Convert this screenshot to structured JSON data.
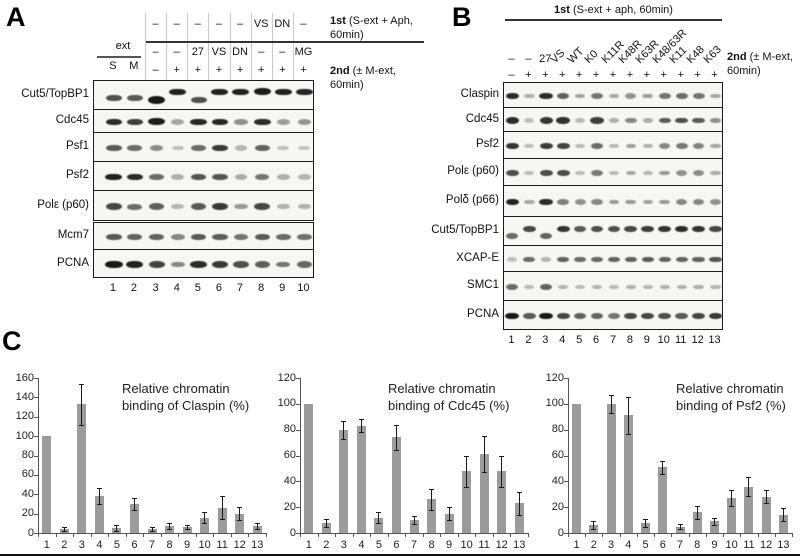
{
  "panel_a": {
    "letter": "A",
    "note_1st": {
      "bold": "1st",
      "rest": "(S-ext + Aph, 60min)"
    },
    "note_2nd": {
      "bold": "2nd",
      "rest": "(± M-ext, 60min)"
    },
    "ext_label": "ext",
    "ext_lanes": [
      "S",
      "M"
    ],
    "cond_row_1st": [
      "–",
      "–",
      "–",
      "–",
      "–",
      "VS",
      "DN",
      "–"
    ],
    "cond_row_2nd": [
      "–",
      "–",
      "27",
      "VS",
      "DN",
      "–",
      "–",
      "MG"
    ],
    "cond_row_mext": [
      "–",
      "+",
      "+",
      "+",
      "+",
      "+",
      "+",
      "+"
    ],
    "lane_numbers": [
      "1",
      "2",
      "3",
      "4",
      "5",
      "6",
      "7",
      "8",
      "9",
      "10"
    ],
    "rows": [
      {
        "label": "Cut5/TopBP1",
        "bands": [
          0.65,
          0.6,
          0.95,
          0.9,
          0.65,
          0.9,
          0.9,
          0.92,
          0.9,
          0.88
        ],
        "dy": [
          2,
          2,
          4,
          -4,
          4,
          -4,
          -4,
          -4,
          -4,
          -4
        ]
      },
      {
        "label": "Cdc45",
        "bands": [
          0.85,
          0.75,
          0.92,
          0.18,
          0.88,
          0.88,
          0.3,
          0.85,
          0.22,
          0.28
        ]
      },
      {
        "label": "Psf1",
        "bands": [
          0.6,
          0.5,
          0.32,
          0.05,
          0.5,
          0.78,
          0.1,
          0.55,
          0.04,
          0.03
        ]
      },
      {
        "label": "Psf2",
        "bands": [
          0.9,
          0.85,
          0.5,
          0.12,
          0.62,
          0.62,
          0.15,
          0.45,
          0.12,
          0.1
        ]
      },
      {
        "label": "Polε (p60)",
        "bands": [
          0.7,
          0.5,
          0.58,
          0.1,
          0.6,
          0.78,
          0.25,
          0.7,
          0.12,
          0.12
        ]
      },
      {
        "label": "Mcm7",
        "bands": [
          0.6,
          0.55,
          0.55,
          0.35,
          0.6,
          0.58,
          0.45,
          0.6,
          0.5,
          0.48
        ]
      },
      {
        "label": "PCNA",
        "bands": [
          0.95,
          0.9,
          0.72,
          0.35,
          0.85,
          0.78,
          0.65,
          0.58,
          0.45,
          0.52
        ]
      }
    ]
  },
  "panel_b": {
    "letter": "B",
    "note_1st": {
      "bold": "1st",
      "rest": "(S-ext + aph, 60min)"
    },
    "note_2nd": {
      "bold": "2nd",
      "rest": "(± M-ext, 60min)"
    },
    "lane_labels": [
      "–",
      "–",
      "27",
      "VS",
      "WT",
      "K0",
      "K11R",
      "K48R",
      "K63R",
      "K48/63R",
      "K11",
      "K48",
      "K63"
    ],
    "cond_row_mext": [
      "–",
      "+",
      "+",
      "+",
      "+",
      "+",
      "+",
      "+",
      "+",
      "+",
      "+",
      "+",
      "+"
    ],
    "lane_numbers": [
      "1",
      "2",
      "3",
      "4",
      "5",
      "6",
      "7",
      "8",
      "9",
      "10",
      "11",
      "12",
      "13"
    ],
    "rows": [
      {
        "label": "Claspin",
        "bands": [
          0.85,
          0.12,
          0.85,
          0.55,
          0.2,
          0.45,
          0.18,
          0.28,
          0.22,
          0.45,
          0.5,
          0.45,
          0.18
        ]
      },
      {
        "label": "Cdc45",
        "bands": [
          0.85,
          0.05,
          0.8,
          0.82,
          0.07,
          0.75,
          0.12,
          0.35,
          0.15,
          0.6,
          0.65,
          0.6,
          0.3
        ]
      },
      {
        "label": "Psf2",
        "bands": [
          0.8,
          0.05,
          0.75,
          0.72,
          0.08,
          0.5,
          0.07,
          0.22,
          0.12,
          0.35,
          0.42,
          0.38,
          0.18
        ]
      },
      {
        "label": "Polε (p60)",
        "bands": [
          0.65,
          0.05,
          0.68,
          0.66,
          0.06,
          0.42,
          0.06,
          0.18,
          0.1,
          0.25,
          0.3,
          0.32,
          0.15
        ]
      },
      {
        "label": "Polδ (p66)",
        "bands": [
          0.9,
          0.18,
          0.85,
          0.4,
          0.3,
          0.35,
          0.25,
          0.25,
          0.2,
          0.25,
          0.35,
          0.35,
          0.3
        ]
      },
      {
        "label": "Cut5/TopBP1",
        "bands": [
          0.5,
          0.7,
          0.55,
          0.8,
          0.6,
          0.65,
          0.65,
          0.7,
          0.75,
          0.8,
          0.85,
          0.8,
          0.7
        ],
        "dy": [
          4,
          -3,
          4,
          -3,
          -3,
          -3,
          -3,
          -3,
          -3,
          -3,
          -3,
          -3,
          -3
        ]
      },
      {
        "label": "XCAP-E",
        "bands": [
          0.05,
          0.5,
          0.1,
          0.55,
          0.5,
          0.52,
          0.55,
          0.55,
          0.6,
          0.55,
          0.55,
          0.55,
          0.62
        ]
      },
      {
        "label": "SMC1",
        "bands": [
          0.5,
          0.07,
          0.55,
          0.1,
          0.08,
          0.1,
          0.08,
          0.12,
          0.1,
          0.12,
          0.12,
          0.12,
          0.1
        ]
      },
      {
        "label": "PCNA",
        "bands": [
          0.95,
          0.6,
          0.95,
          0.7,
          0.55,
          0.55,
          0.45,
          0.7,
          0.7,
          0.65,
          0.6,
          0.7,
          0.78
        ]
      }
    ]
  },
  "panel_c": {
    "letter": "C"
  },
  "chart_data": [
    {
      "type": "bar",
      "title": "Relative chromatin binding of Claspin (%)",
      "title_lines": [
        "Relative chromatin",
        "binding of Claspin (%)"
      ],
      "categories": [
        "1",
        "2",
        "3",
        "4",
        "5",
        "6",
        "7",
        "8",
        "9",
        "10",
        "11",
        "12",
        "13"
      ],
      "values": [
        100,
        4,
        133,
        38,
        5,
        30,
        4,
        7,
        6,
        16,
        26,
        20,
        7
      ],
      "errors": [
        0,
        2,
        21,
        8,
        3,
        6,
        2,
        3,
        2,
        6,
        12,
        7,
        3
      ],
      "ylim": [
        0,
        160
      ],
      "ytick_step": 20,
      "grid": false,
      "legend": false,
      "bar_color": "#9b9b9b"
    },
    {
      "type": "bar",
      "title": "Relative chromatin binding of Cdc45 (%)",
      "title_lines": [
        "Relative chromatin",
        "binding of Cdc45 (%)"
      ],
      "categories": [
        "1",
        "2",
        "3",
        "4",
        "5",
        "6",
        "7",
        "8",
        "9",
        "10",
        "11",
        "12",
        "13"
      ],
      "values": [
        100,
        8,
        80,
        83,
        12,
        74,
        10,
        26,
        15,
        48,
        61,
        48,
        23
      ],
      "errors": [
        0,
        3,
        7,
        5,
        4,
        10,
        3,
        8,
        5,
        12,
        14,
        12,
        9
      ],
      "ylim": [
        0,
        120
      ],
      "ytick_step": 20,
      "grid": false,
      "legend": false,
      "bar_color": "#9b9b9b"
    },
    {
      "type": "bar",
      "title": "Relative chromatin binding of Psf2 (%)",
      "title_lines": [
        "Relative chromatin",
        "binding of Psf2 (%)"
      ],
      "categories": [
        "1",
        "2",
        "3",
        "4",
        "5",
        "6",
        "7",
        "8",
        "9",
        "10",
        "11",
        "12",
        "13"
      ],
      "values": [
        100,
        6,
        100,
        91,
        8,
        51,
        5,
        16,
        9,
        27,
        36,
        28,
        14
      ],
      "errors": [
        0,
        3,
        7,
        14,
        3,
        5,
        2,
        5,
        3,
        6,
        7,
        5,
        5
      ],
      "ylim": [
        0,
        120
      ],
      "ytick_step": 20,
      "grid": false,
      "legend": false,
      "bar_color": "#9b9b9b"
    }
  ]
}
